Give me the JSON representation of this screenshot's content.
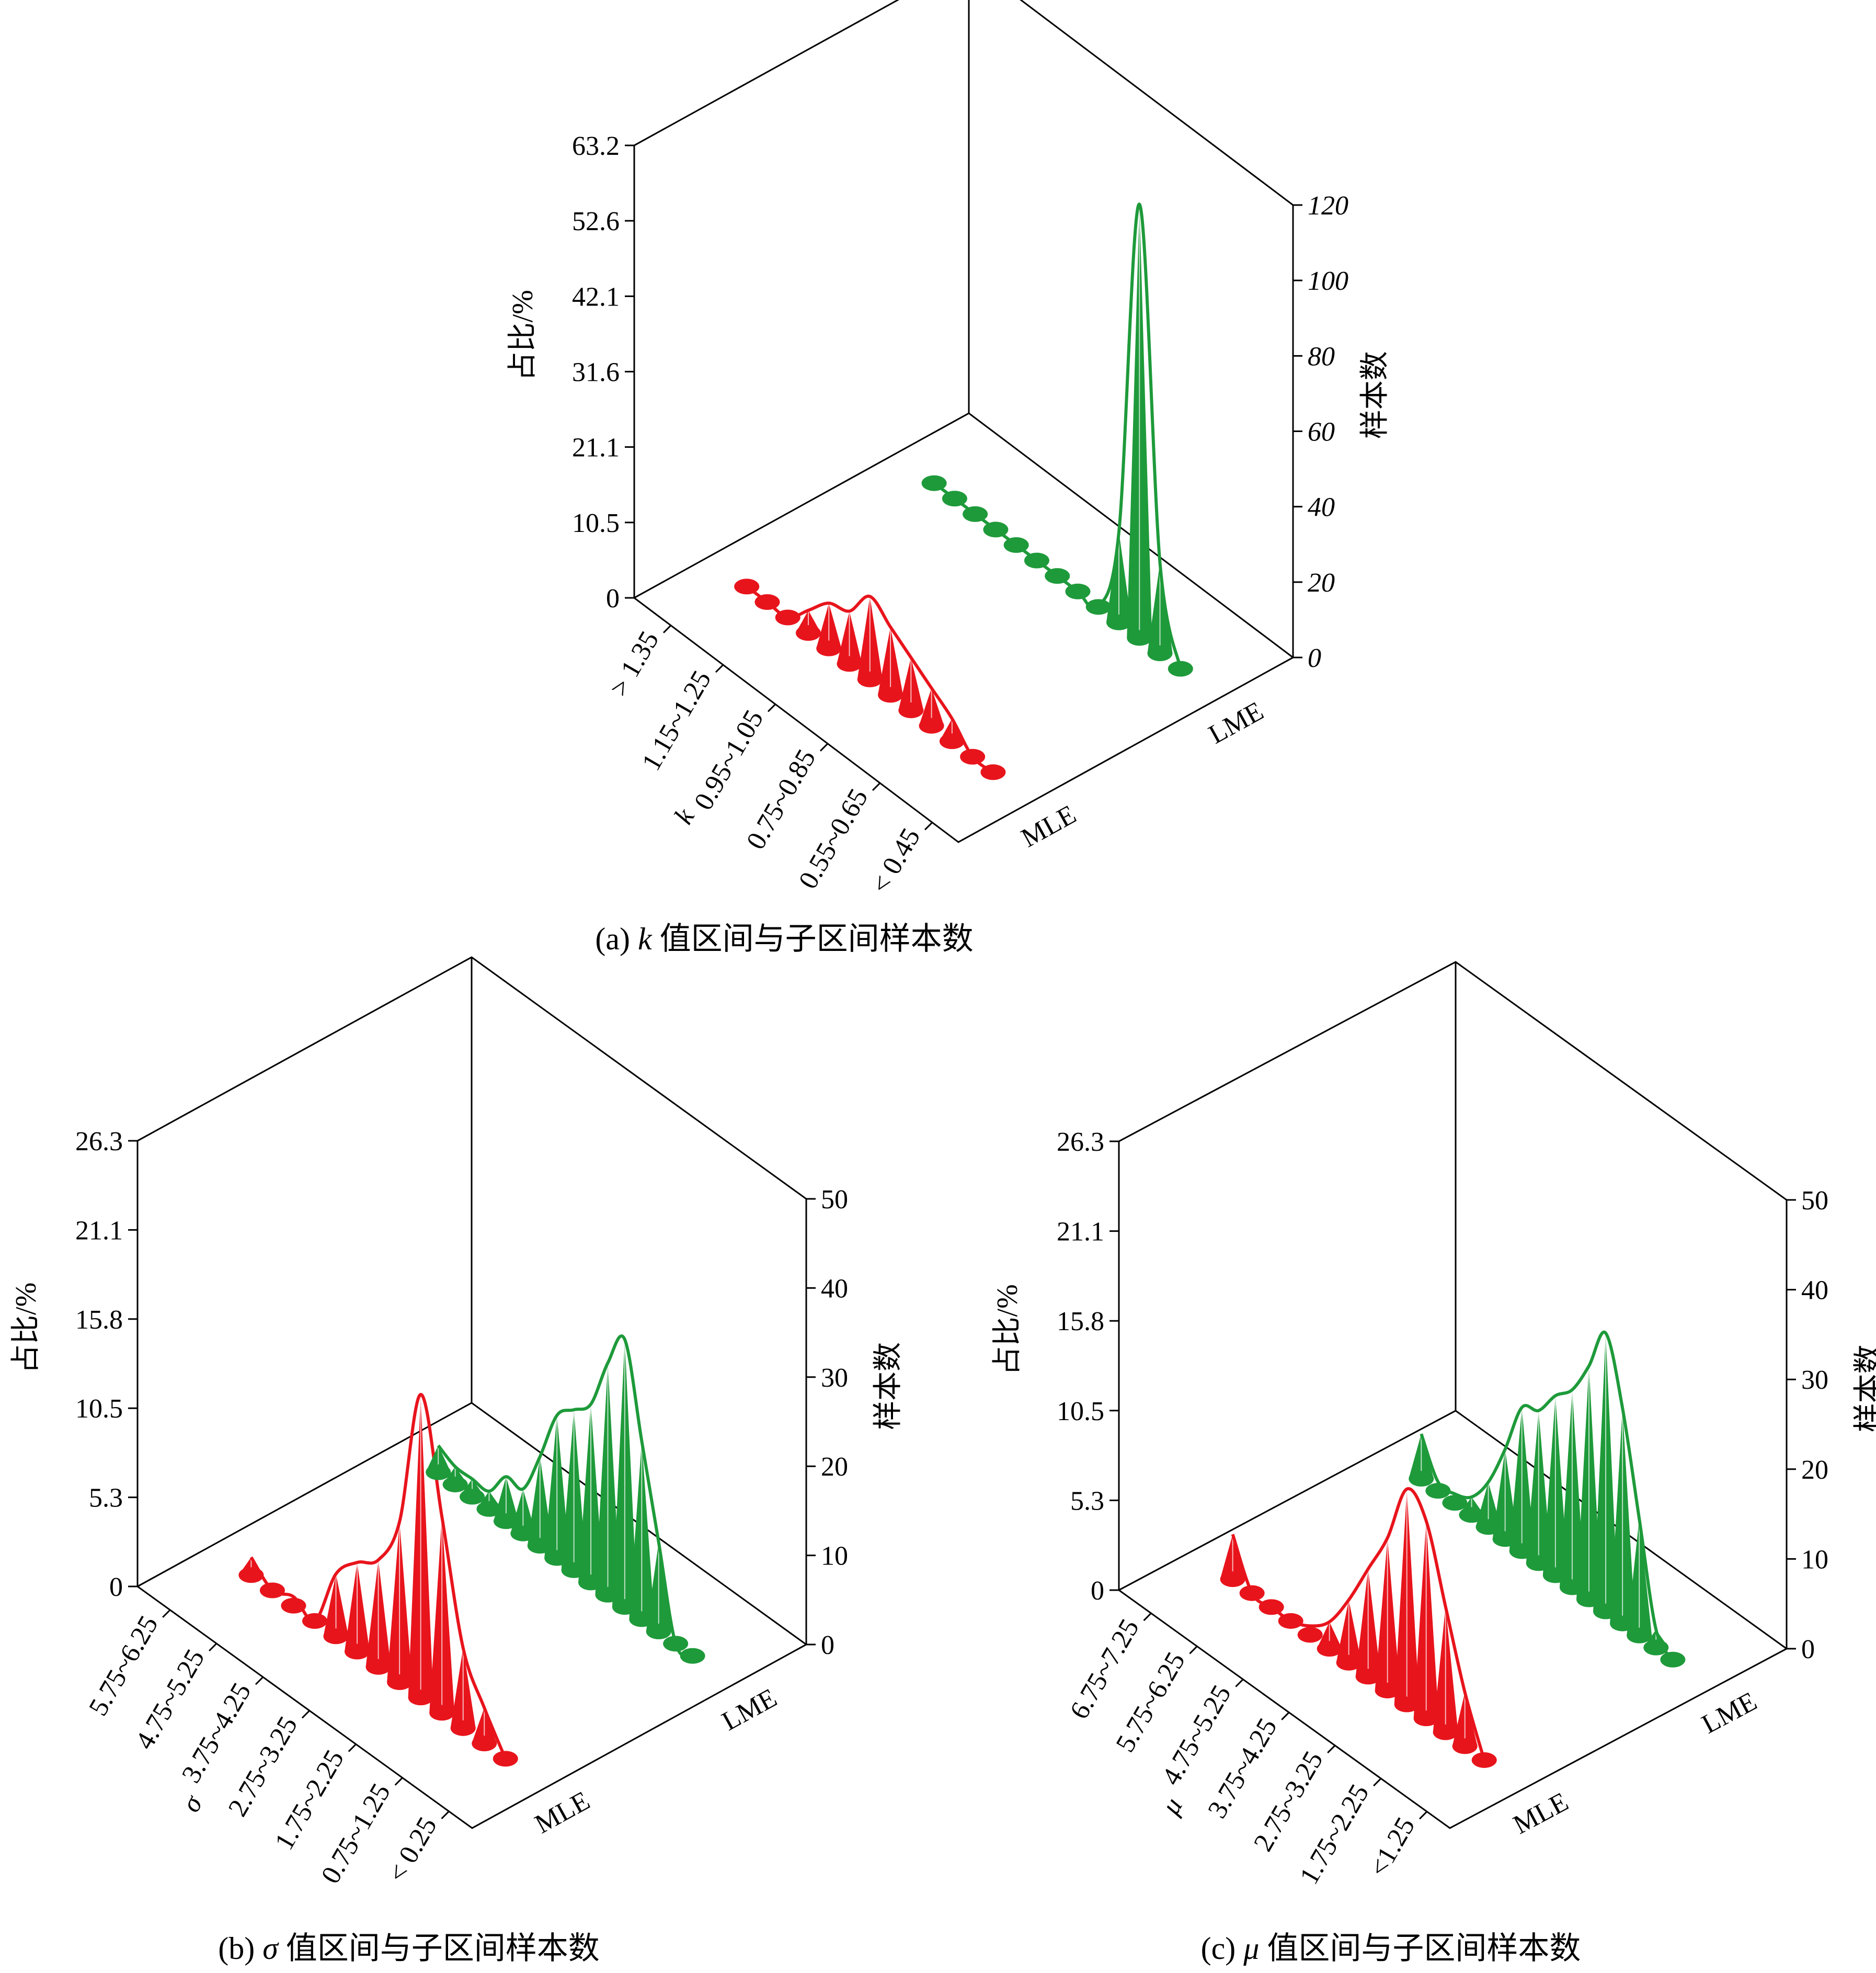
{
  "colors": {
    "mle": "#e8141c",
    "lme": "#1e9a3a",
    "frame": "#000000"
  },
  "chart_data": [
    {
      "type": "bar",
      "caption_prefix": "(a) ",
      "caption_symbol": "k",
      "caption_text": " 值区间与子区间样本数",
      "left_axis_label": "占比/%",
      "right_axis_label": "样本数",
      "left_ticks": [
        "0",
        "10.5",
        "21.1",
        "31.6",
        "42.1",
        "52.6",
        "63.2"
      ],
      "right_ticks": [
        "0",
        "20",
        "40",
        "60",
        "80",
        "100",
        "120"
      ],
      "ylim_percent": [
        0,
        63.2
      ],
      "ylim_count": [
        0,
        120
      ],
      "depth_labels": [
        "MLE",
        "LME"
      ],
      "x_tick_labels": [
        "> 1.35",
        "1.15~1.25",
        "0.95~1.05",
        "0.75~0.85",
        "0.55~0.65",
        "< 0.45"
      ],
      "x_partial_label": "k",
      "series": [
        {
          "name": "MLE",
          "values": [
            0,
            0,
            0,
            6,
            12,
            14,
            22,
            18,
            14,
            10,
            6,
            0,
            0
          ]
        },
        {
          "name": "LME",
          "values": [
            0,
            0,
            0,
            0,
            0,
            0,
            0,
            0,
            0,
            24,
            115,
            24,
            0
          ]
        }
      ]
    },
    {
      "type": "bar",
      "caption_prefix": "(b) ",
      "caption_symbol": "σ",
      "caption_text": " 值区间与子区间样本数",
      "left_axis_label": "占比/%",
      "right_axis_label": "样本数",
      "left_ticks": [
        "0",
        "5.3",
        "10.5",
        "15.8",
        "21.1",
        "26.3"
      ],
      "right_ticks": [
        "0",
        "10",
        "20",
        "30",
        "40",
        "50"
      ],
      "ylim_percent": [
        0,
        26.3
      ],
      "ylim_count": [
        0,
        50
      ],
      "depth_labels": [
        "MLE",
        "LME"
      ],
      "x_tick_labels": [
        "5.75~6.25",
        "4.75~5.25",
        "3.75~4.25",
        "2.75~3.25",
        "1.75~2.25",
        "0.75~1.25",
        "< 0.25"
      ],
      "x_partial_label": "σ",
      "series": [
        {
          "name": "MLE",
          "values": [
            2,
            0,
            1,
            0,
            7,
            10,
            12,
            18,
            34,
            22,
            9,
            4,
            0
          ]
        },
        {
          "name": "LME",
          "values": [
            3,
            2,
            2,
            2,
            5,
            5,
            10,
            16,
            18,
            20,
            26,
            30,
            20,
            10,
            0,
            0
          ]
        }
      ]
    },
    {
      "type": "bar",
      "caption_prefix": "(c) ",
      "caption_symbol": "μ",
      "caption_text": " 值区间与子区间样本数",
      "left_axis_label": "占比/%",
      "right_axis_label": "样本数",
      "left_ticks": [
        "0",
        "5.3",
        "10.5",
        "15.8",
        "21.1",
        "26.3"
      ],
      "right_ticks": [
        "0",
        "10",
        "20",
        "30",
        "40",
        "50"
      ],
      "ylim_percent": [
        0,
        26.3
      ],
      "ylim_count": [
        0,
        50
      ],
      "depth_labels": [
        "MLE",
        "LME"
      ],
      "x_tick_labels": [
        "6.75~7.25",
        "5.75~6.25",
        "4.75~5.25",
        "3.75~4.25",
        "2.75~3.25",
        "1.75~2.25",
        "<1.25"
      ],
      "x_partial_label": "μ",
      "series": [
        {
          "name": "MLE",
          "values": [
            5,
            0,
            0,
            0,
            1,
            3,
            7,
            12,
            17,
            24,
            22,
            14,
            6,
            0
          ]
        },
        {
          "name": "LME",
          "values": [
            5,
            1,
            1,
            2,
            5,
            10,
            16,
            17,
            20,
            22,
            26,
            31,
            24,
            13,
            2,
            0
          ]
        }
      ]
    }
  ]
}
